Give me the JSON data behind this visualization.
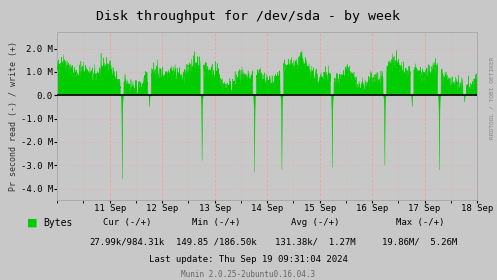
{
  "title": "Disk throughput for /dev/sda - by week",
  "ylabel": "Pr second read (-) / write (+)",
  "bg_color": "#c8c8c8",
  "plot_bg_color": "#c8c8c8",
  "grid_color_minor": "#ff9999",
  "line_color": "#00cc00",
  "zero_line_color": "#000000",
  "xticklabels": [
    "11 Sep",
    "12 Sep",
    "13 Sep",
    "14 Sep",
    "15 Sep",
    "16 Sep",
    "17 Sep",
    "18 Sep"
  ],
  "ytick_vals": [
    -4000000,
    -3000000,
    -2000000,
    -1000000,
    0,
    1000000,
    2000000
  ],
  "yticklabels": [
    "-4.0 M",
    "-3.0 M",
    "-2.0 M",
    "-1.0 M",
    "0.0",
    "1.0 M",
    "2.0 M"
  ],
  "ylim": [
    -4500000,
    2700000
  ],
  "xlim_start": 0,
  "xlim_end": 8,
  "legend_label": "Bytes",
  "legend_color": "#00cc00",
  "footer_cur_label": "Cur (-/+)",
  "footer_cur_val": "27.99k/984.31k",
  "footer_min_label": "Min (-/+)",
  "footer_min_val": "149.85 /186.50k",
  "footer_avg_label": "Avg (-/+)",
  "footer_avg_val": "131.38k/  1.27M",
  "footer_max_label": "Max (-/+)",
  "footer_max_val": "19.86M/  5.26M",
  "footer_lastupdate": "Last update: Thu Sep 19 09:31:04 2024",
  "footer_munin": "Munin 2.0.25-2ubuntu0.16.04.3",
  "rrdtool_label": "RRDTOOL / TOBI OETIKER",
  "seed": 42,
  "n_points": 2000
}
